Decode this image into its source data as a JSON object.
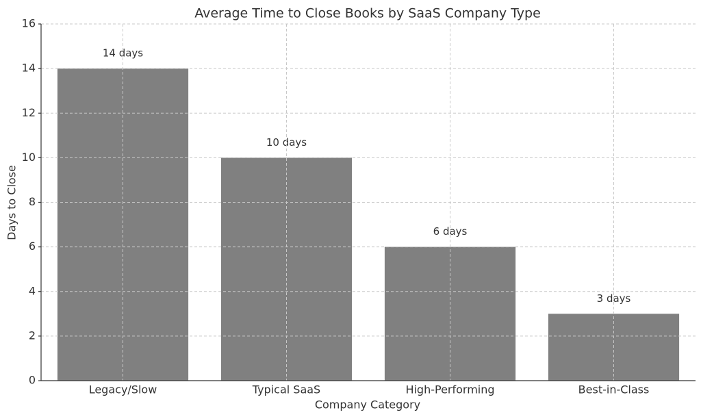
{
  "chart_data": {
    "type": "bar",
    "title": "Average Time to Close Books by SaaS Company Type",
    "x_label": "Company Category",
    "y_label": "Days to Close",
    "categories": [
      "Legacy/Slow",
      "Typical SaaS",
      "High-Performing",
      "Best-in-Class"
    ],
    "values": [
      14,
      10,
      6,
      3
    ],
    "value_labels": [
      "14 days",
      "10 days",
      "6 days",
      "3 days"
    ],
    "color": "#808080",
    "ylim": [
      0,
      16
    ],
    "yticks": [
      0,
      2,
      4,
      6,
      8,
      10,
      12,
      14,
      16
    ],
    "grid": true
  }
}
